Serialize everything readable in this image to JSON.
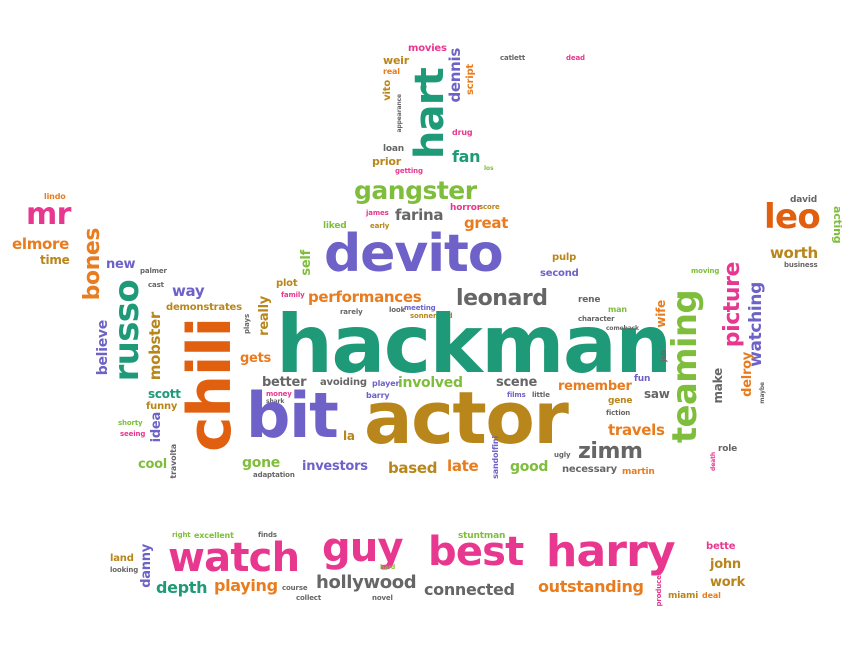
{
  "words": {
    "hackman": "hackman",
    "actor": "actor",
    "devito": "devito",
    "chili": "chili",
    "bit": "bit",
    "teaming": "teaming",
    "harry": "harry",
    "best": "best",
    "guy": "guy",
    "watch": "watch",
    "hart": "hart",
    "gangster": "gangster",
    "leo": "leo",
    "mr": "mr",
    "russo": "russo",
    "picture": "picture",
    "leonard": "leonard",
    "zimm": "zimm",
    "bones": "bones",
    "performances": "performances",
    "hollywood": "hollywood",
    "outstanding": "outstanding",
    "connected": "connected",
    "depth": "depth",
    "playing": "playing",
    "travels": "travels",
    "watching": "watching",
    "worth": "worth",
    "investors": "investors",
    "based": "based",
    "late": "late",
    "good": "good",
    "gone": "gone",
    "better": "better",
    "involved": "involved",
    "scene": "scene",
    "remember": "remember",
    "elmore": "elmore",
    "time": "time",
    "farina": "farina",
    "great": "great",
    "fan": "fan",
    "dennis": "dennis",
    "way": "way",
    "gets": "gets",
    "la": "la",
    "cool": "cool",
    "scott": "scott",
    "idea": "idea",
    "mobster": "mobster",
    "new": "new",
    "believe": "believe",
    "really": "really",
    "self": "self",
    "martin": "martin",
    "make": "make",
    "saw": "saw",
    "wife": "wife",
    "delroy": "delroy",
    "acting": "acting",
    "john": "john",
    "work": "work",
    "bette": "bette",
    "danny": "danny",
    "land": "land",
    "miami": "miami",
    "deal": "deal",
    "movies": "movies",
    "weir": "weir",
    "real": "real",
    "vito": "vito",
    "appearance": "appearance",
    "script": "script",
    "drug": "drug",
    "los": "los",
    "loan": "loan",
    "prior": "prior",
    "getting": "getting",
    "horror": "horror",
    "score": "score",
    "liked": "liked",
    "james": "james",
    "early": "early",
    "pulp": "pulp",
    "second": "second",
    "rene": "rene",
    "plot": "plot",
    "family": "family",
    "demonstrates": "demonstrates",
    "palmer": "palmer",
    "cast": "cast",
    "plays": "plays",
    "rarely": "rarely",
    "look": "look",
    "meeting": "meeting",
    "sonnenfeld": "sonnenfeld",
    "character": "character",
    "comeback": "comeback",
    "man": "man",
    "fiction": "fiction",
    "gene": "gene",
    "fun": "fun",
    "job": "job",
    "role": "role",
    "maybe": "maybe",
    "david": "david",
    "business": "business",
    "moving": "moving",
    "lindo": "lindo",
    "avoiding": "avoiding",
    "player": "player",
    "money": "money",
    "shark": "shark",
    "barry": "barry",
    "films": "films",
    "little": "little",
    "funny": "funny",
    "shorty": "shorty",
    "seeing": "seeing",
    "travolta": "travolta",
    "adaptation": "adaptation",
    "sandolfini": "sandolfini",
    "ugly": "ugly",
    "necessary": "necessary",
    "death": "death",
    "right": "right",
    "excellent": "excellent",
    "finds": "finds",
    "stuntman": "stuntman",
    "looking": "looking",
    "hard": "hard",
    "course": "course",
    "collect": "collect",
    "novel": "novel",
    "producer": "producer",
    "catlett": "catlett",
    "dead": "dead"
  }
}
